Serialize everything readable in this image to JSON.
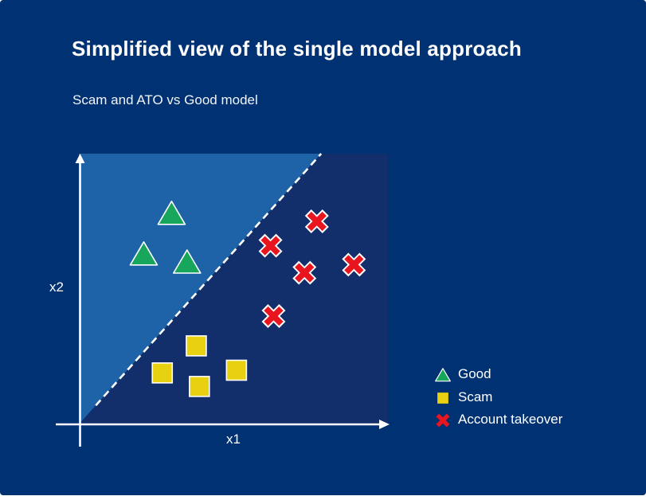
{
  "colors": {
    "background": "#003172",
    "plot_dark_region": "#122F6B",
    "plot_light_region": "#1E62A8",
    "axis": "#ffffff",
    "boundary_line": "#ffffff",
    "text": "#ffffff",
    "good": "#17A65C",
    "scam": "#E8D111",
    "account_takeover": "#E8141E"
  },
  "chart_data": {
    "type": "scatter",
    "title": "Simplified view of the single model approach",
    "subtitle": "Scam and ATO vs Good model",
    "xlabel": "x1",
    "ylabel": "x2",
    "xlim": [
      0,
      10
    ],
    "ylim": [
      0,
      10
    ],
    "grid": false,
    "legend_position": "right",
    "decision_boundary": {
      "from": [
        0,
        0
      ],
      "to": [
        7.84,
        10
      ],
      "style": "dashed",
      "color": "#ffffff"
    },
    "regions": [
      {
        "name": "good-region",
        "side": "above-boundary",
        "color": "#1E62A8"
      },
      {
        "name": "fraud-region",
        "side": "below-boundary",
        "color": "#122F6B"
      }
    ],
    "series": [
      {
        "name": "Good",
        "marker": "triangle",
        "color": "#17A65C",
        "points": [
          [
            3.0,
            7.8
          ],
          [
            2.1,
            6.3
          ],
          [
            3.5,
            6.0
          ]
        ]
      },
      {
        "name": "Scam",
        "marker": "square",
        "color": "#E8D111",
        "points": [
          [
            3.8,
            2.9
          ],
          [
            2.7,
            1.9
          ],
          [
            3.9,
            1.4
          ],
          [
            5.1,
            2.0
          ]
        ]
      },
      {
        "name": "Account takeover",
        "marker": "x",
        "color": "#E8141E",
        "points": [
          [
            7.7,
            7.5
          ],
          [
            6.2,
            6.6
          ],
          [
            7.3,
            5.6
          ],
          [
            8.9,
            5.9
          ],
          [
            6.3,
            4.0
          ]
        ]
      }
    ]
  }
}
